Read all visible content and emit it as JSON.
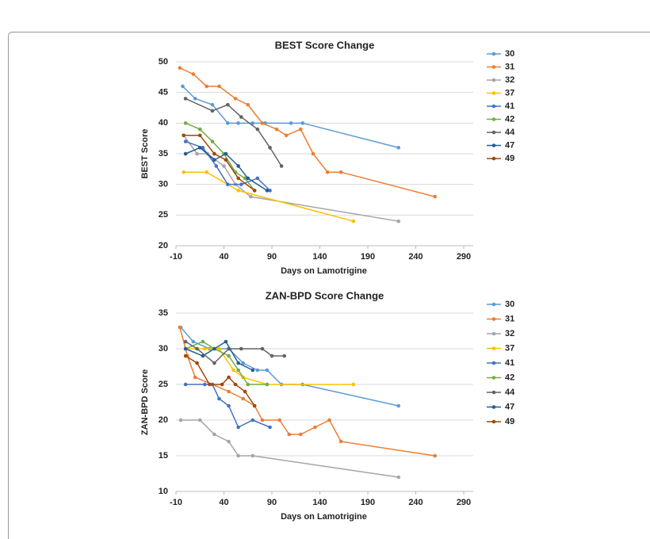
{
  "chart_data": [
    {
      "type": "line",
      "title": "BEST Score Change",
      "x_label": "Days on Lamotrigine",
      "y_label": "BEST Score",
      "xlim": [
        -10,
        290
      ],
      "xticks": [
        -10,
        40,
        90,
        140,
        190,
        240,
        290
      ],
      "ylim": [
        20,
        50
      ],
      "yticks": [
        20,
        25,
        30,
        35,
        40,
        45,
        50
      ],
      "grid": true,
      "legend": "right",
      "series": [
        {
          "name": "30",
          "color": "#5b9bd5",
          "x": [
            -3,
            10,
            28,
            44,
            55,
            70,
            83,
            110,
            122,
            222
          ],
          "values": [
            46,
            44,
            43,
            40,
            40,
            40,
            40,
            40,
            40,
            36
          ]
        },
        {
          "name": "31",
          "color": "#ed7d31",
          "x": [
            -6,
            8,
            22,
            35,
            52,
            65,
            80,
            95,
            105,
            120,
            133,
            148,
            162,
            260
          ],
          "values": [
            49,
            48,
            46,
            46,
            44,
            43,
            40,
            39,
            38,
            39,
            35,
            32,
            32,
            28
          ]
        },
        {
          "name": "32",
          "color": "#a5a5a5",
          "x": [
            -2,
            12,
            23,
            40,
            52,
            68,
            222
          ],
          "values": [
            38,
            35,
            35,
            33,
            30,
            28,
            24
          ]
        },
        {
          "name": "37",
          "color": "#ffc000",
          "x": [
            -2,
            22,
            55,
            175
          ],
          "values": [
            32,
            32,
            29,
            24
          ]
        },
        {
          "name": "41",
          "color": "#4472c4",
          "x": [
            0,
            18,
            32,
            44,
            58,
            75,
            88
          ],
          "values": [
            37,
            36,
            33,
            30,
            30,
            31,
            29
          ]
        },
        {
          "name": "42",
          "color": "#70ad47",
          "x": [
            0,
            15,
            28,
            40,
            52,
            62,
            72
          ],
          "values": [
            40,
            39,
            37,
            35,
            32,
            31,
            29
          ]
        },
        {
          "name": "44",
          "color": "#636363",
          "x": [
            0,
            28,
            44,
            58,
            75,
            88,
            100
          ],
          "values": [
            44,
            42,
            43,
            41,
            39,
            36,
            33
          ]
        },
        {
          "name": "47",
          "color": "#255e91",
          "x": [
            0,
            15,
            30,
            42,
            55,
            65,
            85
          ],
          "values": [
            35,
            36,
            34,
            35,
            33,
            31,
            29
          ]
        },
        {
          "name": "49",
          "color": "#9e480e",
          "x": [
            -2,
            15,
            30,
            42,
            55,
            72
          ],
          "values": [
            38,
            38,
            35,
            34,
            31,
            29
          ]
        }
      ]
    },
    {
      "type": "line",
      "title": "ZAN-BPD Score Change",
      "x_label": "Days on Lamotrigine",
      "y_label": "ZAN-BPD Score",
      "xlim": [
        -10,
        290
      ],
      "xticks": [
        -10,
        40,
        90,
        140,
        190,
        240,
        290
      ],
      "ylim": [
        10,
        35
      ],
      "yticks": [
        10,
        15,
        20,
        25,
        30,
        35
      ],
      "grid": true,
      "legend": "right",
      "series": [
        {
          "name": "30",
          "color": "#5b9bd5",
          "x": [
            -5,
            8,
            25,
            45,
            60,
            75,
            85,
            100,
            122,
            222
          ],
          "values": [
            33,
            31,
            30,
            30,
            28,
            27,
            27,
            25,
            25,
            22
          ]
        },
        {
          "name": "31",
          "color": "#ed7d31",
          "x": [
            -6,
            2,
            10,
            28,
            45,
            60,
            72,
            80,
            98,
            108,
            120,
            135,
            150,
            162,
            260
          ],
          "values": [
            33,
            29,
            26,
            25,
            24,
            23,
            22,
            20,
            20,
            18,
            18,
            19,
            20,
            17,
            15
          ]
        },
        {
          "name": "32",
          "color": "#a5a5a5",
          "x": [
            -5,
            15,
            30,
            45,
            55,
            70,
            222
          ],
          "values": [
            20,
            20,
            18,
            17,
            15,
            15,
            12
          ]
        },
        {
          "name": "37",
          "color": "#ffc000",
          "x": [
            0,
            20,
            35,
            50,
            60,
            85,
            175
          ],
          "values": [
            30,
            30,
            30,
            27,
            26,
            25,
            25
          ]
        },
        {
          "name": "41",
          "color": "#4472c4",
          "x": [
            0,
            20,
            28,
            35,
            45,
            55,
            70,
            88
          ],
          "values": [
            25,
            25,
            25,
            23,
            22,
            19,
            20,
            19
          ]
        },
        {
          "name": "42",
          "color": "#70ad47",
          "x": [
            0,
            18,
            30,
            45,
            55,
            65,
            85
          ],
          "values": [
            30,
            31,
            30,
            29,
            27,
            25,
            25
          ]
        },
        {
          "name": "44",
          "color": "#636363",
          "x": [
            0,
            12,
            30,
            45,
            58,
            80,
            90,
            103
          ],
          "values": [
            31,
            30,
            28,
            30,
            30,
            30,
            29,
            29
          ]
        },
        {
          "name": "47",
          "color": "#255e91",
          "x": [
            0,
            18,
            30,
            42,
            55,
            70
          ],
          "values": [
            30,
            29,
            30,
            31,
            28,
            27
          ]
        },
        {
          "name": "49",
          "color": "#9e480e",
          "x": [
            0,
            12,
            25,
            38,
            45,
            52,
            62,
            72
          ],
          "values": [
            29,
            28,
            25,
            25,
            26,
            25,
            24,
            22
          ]
        }
      ]
    }
  ]
}
